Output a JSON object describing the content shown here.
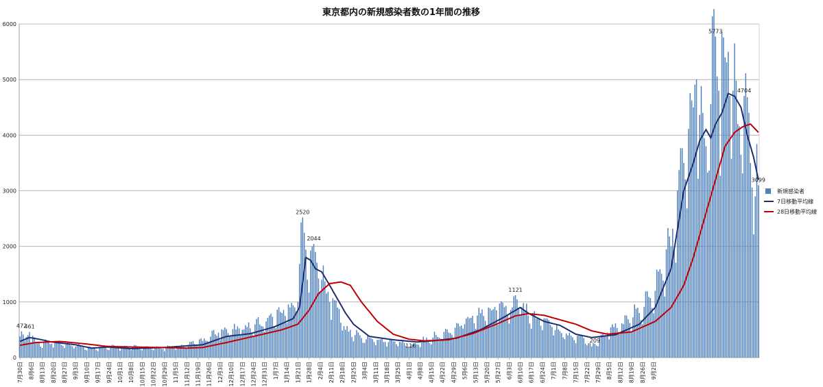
{
  "chart_data": {
    "type": "bar",
    "title": "東京都内の新規感染者数の1年間の推移",
    "xlabel": "",
    "ylabel": "",
    "ylim": [
      0,
      6000
    ],
    "yticks": [
      0,
      1000,
      2000,
      3000,
      4000,
      5000,
      6000
    ],
    "grid": true,
    "legend_position": "right",
    "start_date": "7月30日",
    "end_date": "9月2日",
    "x_tick_labels": [
      "7月30日",
      "8月6日",
      "8月13日",
      "8月20日",
      "8月27日",
      "9月3日",
      "9月10日",
      "9月17日",
      "9月24日",
      "10月1日",
      "10月8日",
      "10月15日",
      "10月22日",
      "10月29日",
      "11月5日",
      "11月12日",
      "11月19日",
      "11月26日",
      "12月3日",
      "12月10日",
      "12月17日",
      "12月24日",
      "12月31日",
      "1月7日",
      "1月14日",
      "1月21日",
      "1月28日",
      "2月4日",
      "2月11日",
      "2月18日",
      "2月25日",
      "3月4日",
      "3月11日",
      "3月18日",
      "3月25日",
      "4月1日",
      "4月8日",
      "4月15日",
      "4月22日",
      "4月29日",
      "5月6日",
      "5月13日",
      "5月20日",
      "5月27日",
      "6月3日",
      "6月10日",
      "6月17日",
      "6月24日",
      "7月1日",
      "7月8日",
      "7月15日",
      "7月22日",
      "7月29日",
      "8月5日",
      "8月12日",
      "8月19日",
      "8月26日",
      "9月2日"
    ],
    "series": [
      {
        "name": "新規感染者",
        "kind": "bar",
        "color": "#4f81bd",
        "anchors": [
          [
            0,
            380
          ],
          [
            1,
            472
          ],
          [
            3,
            300
          ],
          [
            6,
            461
          ],
          [
            10,
            260
          ],
          [
            20,
            250
          ],
          [
            35,
            200
          ],
          [
            45,
            170
          ],
          [
            60,
            190
          ],
          [
            85,
            170
          ],
          [
            100,
            180
          ],
          [
            115,
            300
          ],
          [
            125,
            450
          ],
          [
            140,
            500
          ],
          [
            155,
            650
          ],
          [
            165,
            800
          ],
          [
            170,
            900
          ],
          [
            175,
            1000
          ],
          [
            178,
            2520
          ],
          [
            181,
            1400
          ],
          [
            185,
            2044
          ],
          [
            190,
            1400
          ],
          [
            195,
            1000
          ],
          [
            200,
            900
          ],
          [
            205,
            500
          ],
          [
            215,
            350
          ],
          [
            230,
            280
          ],
          [
            240,
            275
          ],
          [
            245,
            200
          ],
          [
            255,
            300
          ],
          [
            270,
            450
          ],
          [
            280,
            600
          ],
          [
            290,
            800
          ],
          [
            300,
            850
          ],
          [
            310,
            900
          ],
          [
            312,
            1121
          ],
          [
            318,
            850
          ],
          [
            325,
            700
          ],
          [
            335,
            550
          ],
          [
            345,
            400
          ],
          [
            355,
            350
          ],
          [
            360,
            200
          ],
          [
            370,
            450
          ],
          [
            380,
            600
          ],
          [
            390,
            800
          ],
          [
            400,
            1200
          ],
          [
            410,
            2000
          ],
          [
            418,
            3500
          ],
          [
            424,
            4500
          ],
          [
            426,
            5000
          ],
          [
            432,
            3800
          ],
          [
            438,
            5773
          ],
          [
            440,
            4800
          ],
          [
            444,
            5400
          ],
          [
            446,
            5500
          ],
          [
            449,
            4800
          ],
          [
            452,
            4200
          ],
          [
            456,
            4704
          ],
          [
            460,
            3500
          ],
          [
            463,
            2900
          ],
          [
            465,
            3099
          ]
        ]
      },
      {
        "name": "7日移動平均線",
        "kind": "line",
        "color": "#1f2d6e",
        "anchors": [
          [
            0,
            290
          ],
          [
            6,
            360
          ],
          [
            12,
            330
          ],
          [
            20,
            280
          ],
          [
            35,
            230
          ],
          [
            45,
            170
          ],
          [
            55,
            190
          ],
          [
            70,
            160
          ],
          [
            90,
            180
          ],
          [
            115,
            230
          ],
          [
            130,
            380
          ],
          [
            145,
            430
          ],
          [
            160,
            550
          ],
          [
            172,
            700
          ],
          [
            176,
            900
          ],
          [
            180,
            1800
          ],
          [
            183,
            1750
          ],
          [
            186,
            1600
          ],
          [
            190,
            1540
          ],
          [
            195,
            1300
          ],
          [
            200,
            1050
          ],
          [
            205,
            800
          ],
          [
            210,
            600
          ],
          [
            220,
            380
          ],
          [
            235,
            320
          ],
          [
            250,
            280
          ],
          [
            260,
            300
          ],
          [
            275,
            350
          ],
          [
            290,
            500
          ],
          [
            305,
            730
          ],
          [
            315,
            900
          ],
          [
            320,
            800
          ],
          [
            330,
            650
          ],
          [
            340,
            580
          ],
          [
            350,
            420
          ],
          [
            360,
            360
          ],
          [
            375,
            410
          ],
          [
            390,
            600
          ],
          [
            400,
            900
          ],
          [
            410,
            1600
          ],
          [
            418,
            3000
          ],
          [
            424,
            3500
          ],
          [
            428,
            3900
          ],
          [
            432,
            4100
          ],
          [
            435,
            3950
          ],
          [
            438,
            4200
          ],
          [
            442,
            4400
          ],
          [
            446,
            4750
          ],
          [
            450,
            4700
          ],
          [
            454,
            4500
          ],
          [
            458,
            4000
          ],
          [
            462,
            3600
          ],
          [
            465,
            3200
          ]
        ]
      },
      {
        "name": "28日移動平均線",
        "kind": "line",
        "color": "#c00000",
        "anchors": [
          [
            0,
            220
          ],
          [
            10,
            270
          ],
          [
            25,
            290
          ],
          [
            40,
            250
          ],
          [
            55,
            200
          ],
          [
            70,
            190
          ],
          [
            90,
            180
          ],
          [
            105,
            170
          ],
          [
            115,
            180
          ],
          [
            130,
            270
          ],
          [
            150,
            400
          ],
          [
            165,
            500
          ],
          [
            175,
            600
          ],
          [
            182,
            850
          ],
          [
            188,
            1150
          ],
          [
            195,
            1330
          ],
          [
            202,
            1360
          ],
          [
            208,
            1300
          ],
          [
            215,
            1000
          ],
          [
            225,
            650
          ],
          [
            235,
            420
          ],
          [
            245,
            330
          ],
          [
            255,
            300
          ],
          [
            270,
            320
          ],
          [
            285,
            430
          ],
          [
            300,
            600
          ],
          [
            312,
            750
          ],
          [
            320,
            790
          ],
          [
            330,
            760
          ],
          [
            340,
            680
          ],
          [
            350,
            600
          ],
          [
            360,
            480
          ],
          [
            370,
            420
          ],
          [
            385,
            460
          ],
          [
            400,
            650
          ],
          [
            410,
            900
          ],
          [
            418,
            1300
          ],
          [
            424,
            1800
          ],
          [
            430,
            2400
          ],
          [
            438,
            3200
          ],
          [
            444,
            3800
          ],
          [
            450,
            4050
          ],
          [
            455,
            4150
          ],
          [
            460,
            4200
          ],
          [
            465,
            4050
          ]
        ]
      }
    ],
    "annotations": [
      {
        "label": "472",
        "x": 1,
        "y": 472
      },
      {
        "label": "461",
        "x": 6,
        "y": 461
      },
      {
        "label": "2520",
        "x": 178,
        "y": 2520
      },
      {
        "label": "2044",
        "x": 185,
        "y": 2044
      },
      {
        "label": "116",
        "x": 246,
        "y": 116
      },
      {
        "label": "1121",
        "x": 312,
        "y": 1121
      },
      {
        "label": "209",
        "x": 362,
        "y": 209
      },
      {
        "label": "5773",
        "x": 438,
        "y": 5773
      },
      {
        "label": "4704",
        "x": 456,
        "y": 4704
      },
      {
        "label": "3099",
        "x": 465,
        "y": 3099
      }
    ]
  }
}
